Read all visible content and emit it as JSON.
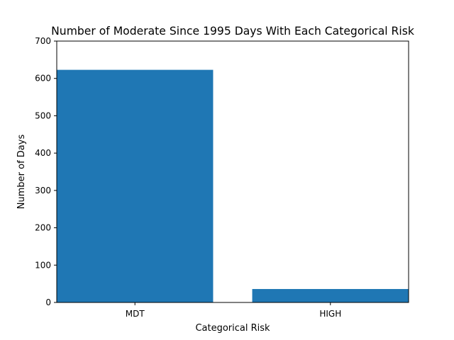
{
  "chart_data": {
    "type": "bar",
    "title": "Number of Moderate Since 1995 Days With Each Categorical Risk",
    "xlabel": "Categorical Risk",
    "ylabel": "Number of Days",
    "categories": [
      "MDT",
      "HIGH"
    ],
    "values": [
      623,
      36
    ],
    "ylim": [
      0,
      700
    ],
    "yticks": [
      0,
      100,
      200,
      300,
      400,
      500,
      600,
      700
    ],
    "bar_color": "#1f77b4",
    "grid": false,
    "legend": "none"
  }
}
